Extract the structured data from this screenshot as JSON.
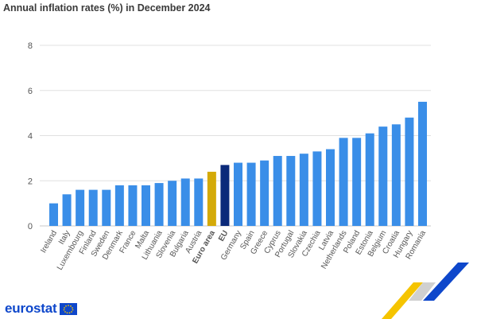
{
  "title": "Annual inflation rates (%) in December 2024",
  "brand": {
    "name": "eurostat",
    "flag_icon": "eu-flag-icon"
  },
  "colors": {
    "country": "#3a8ee8",
    "euro_area": "#d4aa08",
    "eu": "#0b2a7a",
    "grid": "#e0e0e0",
    "tick": "#555555"
  },
  "chart_data": {
    "type": "bar",
    "title": "Annual inflation rates (%) in December 2024",
    "xlabel": "",
    "ylabel": "",
    "ylim": [
      0,
      8
    ],
    "yticks": [
      0,
      2,
      4,
      6,
      8
    ],
    "grid": true,
    "categories": [
      "Ireland",
      "Italy",
      "Luxembourg",
      "Finland",
      "Sweden",
      "Denmark",
      "France",
      "Malta",
      "Lithuania",
      "Slovenia",
      "Bulgaria",
      "Austria",
      "Euro area",
      "EU",
      "Germany",
      "Spain",
      "Greece",
      "Cyprus",
      "Portugal",
      "Slovakia",
      "Czechia",
      "Latvia",
      "Netherlands",
      "Poland",
      "Estonia",
      "Belgium",
      "Croatia",
      "Hungary",
      "Romania"
    ],
    "values": [
      1.0,
      1.4,
      1.6,
      1.6,
      1.6,
      1.8,
      1.8,
      1.8,
      1.9,
      2.0,
      2.1,
      2.1,
      2.4,
      2.7,
      2.8,
      2.8,
      2.9,
      3.1,
      3.1,
      3.2,
      3.3,
      3.4,
      3.9,
      3.9,
      4.1,
      4.4,
      4.5,
      4.8,
      5.5
    ],
    "highlight": {
      "Euro area": "euro_area",
      "EU": "eu"
    }
  }
}
